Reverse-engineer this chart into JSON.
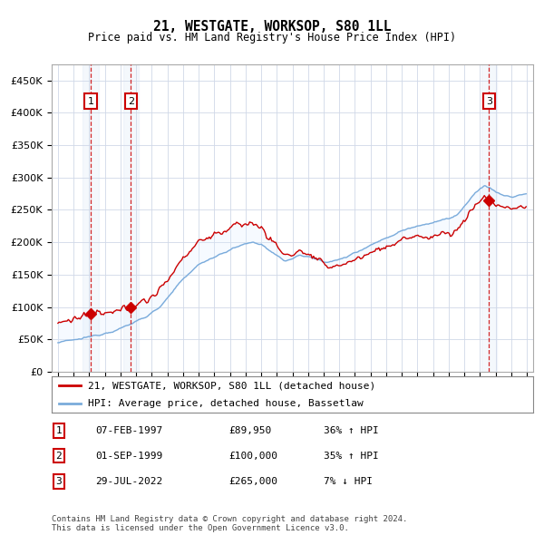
{
  "title": "21, WESTGATE, WORKSOP, S80 1LL",
  "subtitle": "Price paid vs. HM Land Registry's House Price Index (HPI)",
  "ylim": [
    0,
    475000
  ],
  "yticks": [
    0,
    50000,
    100000,
    150000,
    200000,
    250000,
    300000,
    350000,
    400000,
    450000
  ],
  "ytick_labels": [
    "£0",
    "£50K",
    "£100K",
    "£150K",
    "£200K",
    "£250K",
    "£300K",
    "£350K",
    "£400K",
    "£450K"
  ],
  "sale_years": [
    1997.1,
    1999.67,
    2022.57
  ],
  "sale_prices": [
    89950,
    100000,
    265000
  ],
  "sale_color": "#cc0000",
  "hpi_color": "#7aabdb",
  "background_color": "#ffffff",
  "grid_color": "#d0d8e8",
  "shade_color": "#ddeeff",
  "transaction_labels": [
    "1",
    "2",
    "3"
  ],
  "legend_line1": "21, WESTGATE, WORKSOP, S80 1LL (detached house)",
  "legend_line2": "HPI: Average price, detached house, Bassetlaw",
  "table_data": [
    [
      "1",
      "07-FEB-1997",
      "£89,950",
      "36% ↑ HPI"
    ],
    [
      "2",
      "01-SEP-1999",
      "£100,000",
      "35% ↑ HPI"
    ],
    [
      "3",
      "29-JUL-2022",
      "£265,000",
      "7% ↓ HPI"
    ]
  ],
  "footer": "Contains HM Land Registry data © Crown copyright and database right 2024.\nThis data is licensed under the Open Government Licence v3.0."
}
